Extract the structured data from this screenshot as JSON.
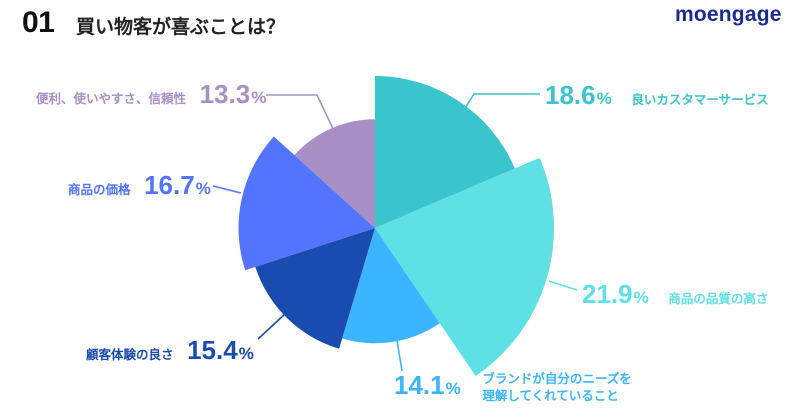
{
  "header": {
    "number": "01",
    "title": "買い物客が喜ぶことは？",
    "logo": "moengage"
  },
  "colors": {
    "good_customer_service": "#3AC4CB",
    "product_quality": "#5FE0E5",
    "brand_understands_needs": "#3BB5FF",
    "customer_experience": "#1A4BAE",
    "product_price": "#5274FF",
    "convenience_reliability": "#A990C4"
  },
  "labels": {
    "s0": {
      "pct": "18.6",
      "unit": "%",
      "text": "良いカスタマーサービス"
    },
    "s1": {
      "pct": "21.9",
      "unit": "%",
      "text": "商品の品質の高さ"
    },
    "s2": {
      "pct": "14.1",
      "unit": "%",
      "line1": "ブランドが自分のニーズを",
      "line2": "理解してくれていること"
    },
    "s3": {
      "pct": "15.4",
      "unit": "%",
      "text": "顧客体験の良さ"
    },
    "s4": {
      "pct": "16.7",
      "unit": "%",
      "text": "商品の価格"
    },
    "s5": {
      "pct": "13.3",
      "unit": "%",
      "text": "便利、使いやすさ、信頼性"
    }
  },
  "chart_data": {
    "type": "pie",
    "title": "買い物客が喜ぶことは？",
    "variant": "variable-radius (rose) pie, radius scales with value",
    "categories": [
      "良いカスタマーサービス",
      "商品の品質の高さ",
      "ブランドが自分のニーズを理解してくれていること",
      "顧客体験の良さ",
      "商品の価格",
      "便利、使いやすさ、信頼性"
    ],
    "values": [
      18.6,
      21.9,
      14.1,
      15.4,
      16.7,
      13.3
    ],
    "unit": "%",
    "start_angle": "12 o'clock, clockwise",
    "legend": "none (direct labels with leader lines)"
  }
}
